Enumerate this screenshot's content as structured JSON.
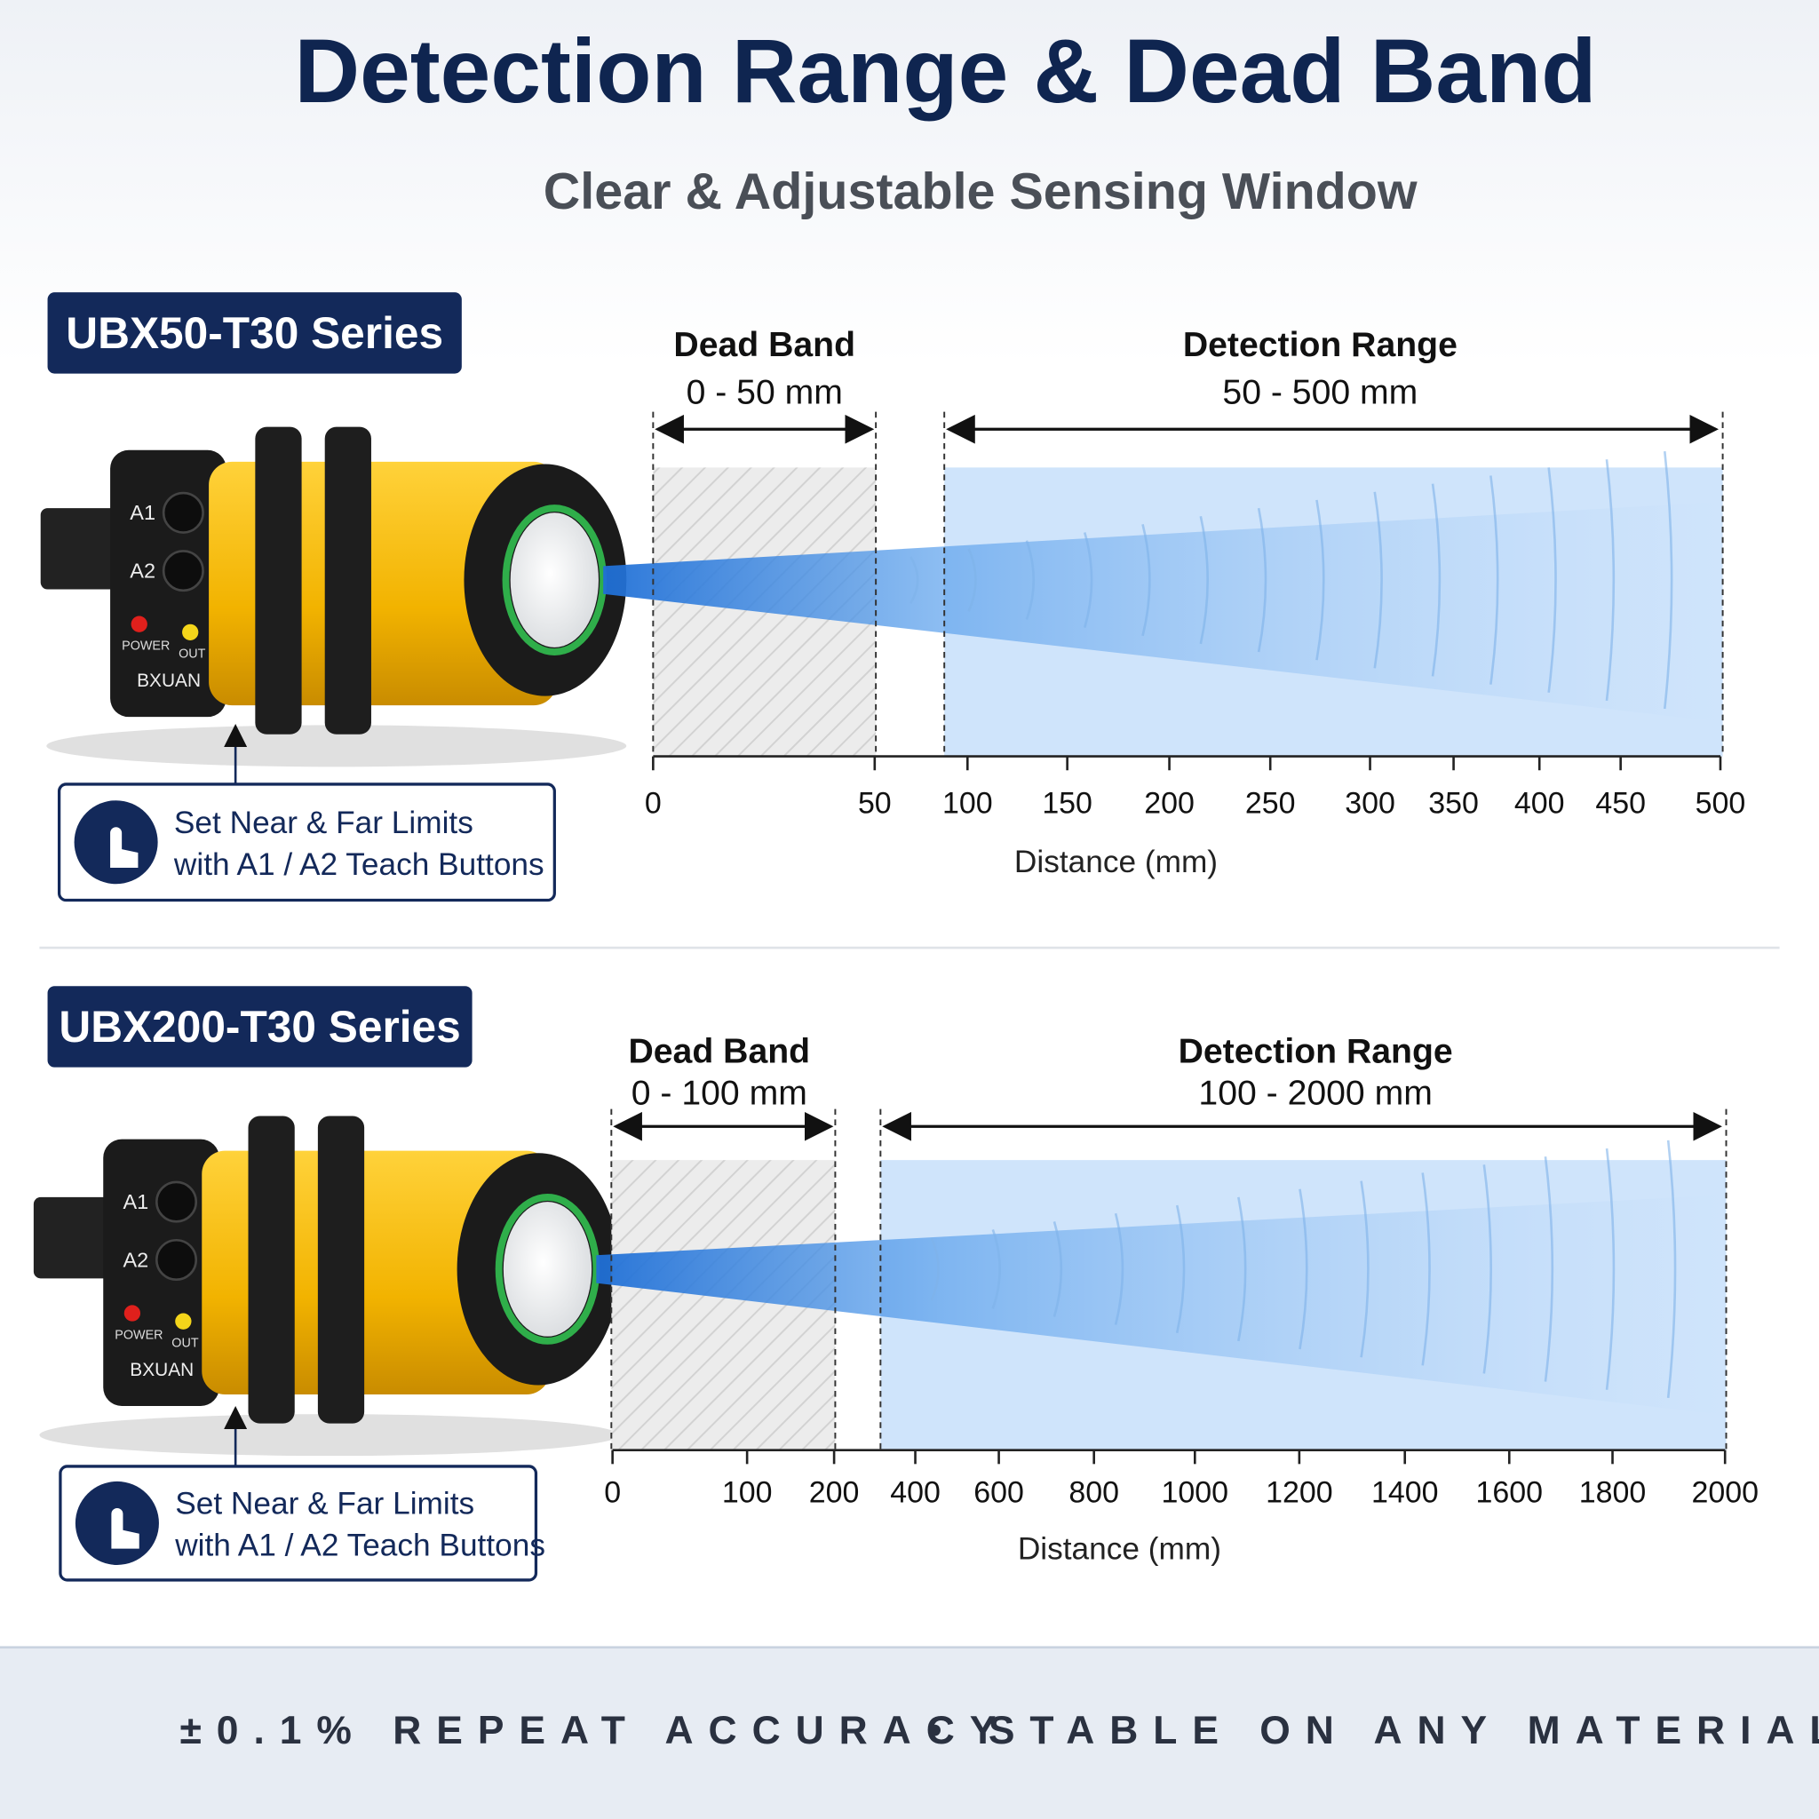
{
  "header": {
    "title": "Detection Range & Dead Band",
    "subtitle": "Clear & Adjustable Sensing Window"
  },
  "sections": [
    {
      "series": "UBX50-T30 Series",
      "sensor": {
        "buttons": [
          "A1",
          "A2"
        ],
        "leds": [
          "POWER",
          "OUT"
        ],
        "brand": "BXUAN"
      },
      "dead_band": {
        "label": "Dead Band",
        "range": "0 - 50 mm"
      },
      "detection_range": {
        "label": "Detection Range",
        "range": "50 - 500 mm"
      },
      "ticks": [
        0,
        50,
        100,
        150,
        200,
        250,
        300,
        350,
        400,
        450,
        500
      ],
      "axis_label": "Distance (mm)",
      "note": [
        "Set Near & Far Limits",
        "with A1 / A2 Teach Buttons"
      ]
    },
    {
      "series": "UBX200-T30 Series",
      "sensor": {
        "buttons": [
          "A1",
          "A2"
        ],
        "leds": [
          "POWER",
          "OUT"
        ],
        "brand": "BXUAN"
      },
      "dead_band": {
        "label": "Dead Band",
        "range": "0 - 100 mm"
      },
      "detection_range": {
        "label": "Detection Range",
        "range": "100 - 2000 mm"
      },
      "ticks": [
        0,
        100,
        200,
        400,
        600,
        800,
        1000,
        1200,
        1400,
        1600,
        1800,
        2000
      ],
      "axis_label": "Distance (mm)",
      "note": [
        "Set Near & Far Limits",
        "with A1 / A2 Teach Buttons"
      ]
    }
  ],
  "footer": {
    "left": "±0.1% REPEAT ACCURACY",
    "separator": "•",
    "right": "STABLE ON ANY MATERIAL"
  }
}
